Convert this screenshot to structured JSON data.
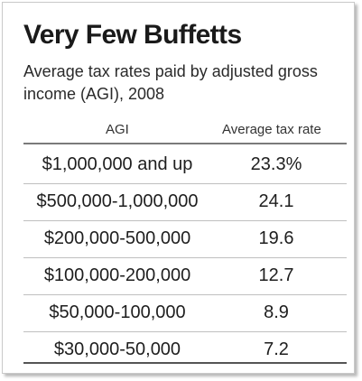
{
  "chart_data": {
    "type": "table",
    "title": "Very Few Buffetts",
    "subtitle": "Average tax rates paid by adjusted gross income (AGI), 2008",
    "columns": [
      "AGI",
      "Average tax rate"
    ],
    "rows": [
      {
        "agi": "$1,000,000 and up",
        "rate": "23.3%",
        "value": 23.3
      },
      {
        "agi": "$500,000-1,000,000",
        "rate": "24.1",
        "value": 24.1
      },
      {
        "agi": "$200,000-500,000",
        "rate": "19.6",
        "value": 19.6
      },
      {
        "agi": "$100,000-200,000",
        "rate": "12.7",
        "value": 12.7
      },
      {
        "agi": "$50,000-100,000",
        "rate": "8.9",
        "value": 8.9
      },
      {
        "agi": "$30,000-50,000",
        "rate": "7.2",
        "value": 7.2
      }
    ]
  }
}
